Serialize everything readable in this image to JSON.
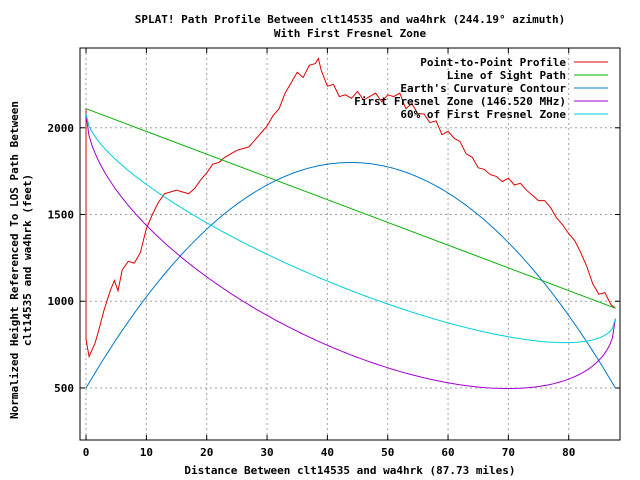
{
  "chart_data": {
    "type": "line",
    "title": "SPLAT! Path Profile Between clt14535 and wa4hrk (244.19° azimuth)",
    "subtitle": "With First Fresnel Zone",
    "xlabel": "Distance Between clt14535 and wa4hrk (87.73 miles)",
    "ylabel_line1": "Normalized Height Referenced To LOS Path Between",
    "ylabel_line2": "clt14535 and wa4hrk (feet)",
    "xlim": [
      -1,
      88.5
    ],
    "ylim": [
      200,
      2460
    ],
    "xticks": [
      0,
      10,
      20,
      30,
      40,
      50,
      60,
      70,
      80
    ],
    "yticks": [
      500,
      1000,
      1500,
      2000
    ],
    "grid": true,
    "legend_position": "top-right",
    "path_length": 87.73,
    "series": [
      {
        "name": "Point-to-Point Profile",
        "color": "#e00000",
        "x": [
          0,
          0,
          0.5,
          1,
          1.5,
          2,
          3,
          4,
          4.7,
          5.3,
          6,
          7,
          8,
          9,
          10,
          11,
          12,
          13,
          14,
          15,
          16,
          17,
          18,
          19,
          20,
          21,
          22,
          23,
          24,
          25,
          26,
          27,
          28,
          29,
          30,
          31,
          32,
          33,
          34,
          35,
          36,
          37,
          38,
          38.5,
          39,
          40,
          41,
          42,
          43,
          44,
          45,
          46,
          47,
          48,
          49,
          50,
          51,
          52,
          53,
          54,
          55,
          56,
          57,
          58,
          59,
          60,
          61,
          62,
          63,
          64,
          65,
          66,
          67,
          68,
          69,
          70,
          71,
          72,
          73,
          74,
          75,
          76,
          77,
          78,
          79,
          80,
          81,
          82,
          83,
          84,
          85,
          86,
          87,
          87.73
        ],
        "y": [
          2110,
          780,
          680,
          720,
          760,
          820,
          950,
          1060,
          1120,
          1060,
          1180,
          1230,
          1220,
          1280,
          1420,
          1500,
          1570,
          1620,
          1630,
          1640,
          1630,
          1620,
          1650,
          1700,
          1740,
          1790,
          1800,
          1830,
          1850,
          1870,
          1880,
          1890,
          1930,
          1970,
          2010,
          2070,
          2110,
          2200,
          2260,
          2320,
          2290,
          2360,
          2370,
          2400,
          2330,
          2240,
          2250,
          2180,
          2190,
          2170,
          2210,
          2160,
          2180,
          2200,
          2150,
          2190,
          2180,
          2200,
          2110,
          2140,
          2080,
          2080,
          2030,
          2040,
          1960,
          1980,
          1940,
          1920,
          1850,
          1830,
          1770,
          1760,
          1730,
          1720,
          1690,
          1710,
          1670,
          1680,
          1640,
          1610,
          1580,
          1580,
          1540,
          1480,
          1440,
          1390,
          1350,
          1280,
          1200,
          1100,
          1040,
          1050,
          980,
          960
        ]
      },
      {
        "name": "Line of Sight Path",
        "color": "#00b000",
        "line": {
          "x": [
            0,
            87.73
          ],
          "y": [
            2110,
            960
          ]
        }
      },
      {
        "name": "Earth's Curvature Contour",
        "color": "#0078c8",
        "curve": {
          "base": 500,
          "peak": 1800
        }
      },
      {
        "name": "First Fresnel Zone (146.520 MHz)",
        "color": "#a000d0",
        "curve": {
          "start": 2080,
          "end": 900,
          "min": 500,
          "min_at": 67
        }
      },
      {
        "name": "60% of First Fresnel Zone",
        "color": "#00d0d8",
        "curve": {
          "start": 2080,
          "end": 900,
          "min": 770,
          "min_at": 75
        }
      }
    ]
  }
}
